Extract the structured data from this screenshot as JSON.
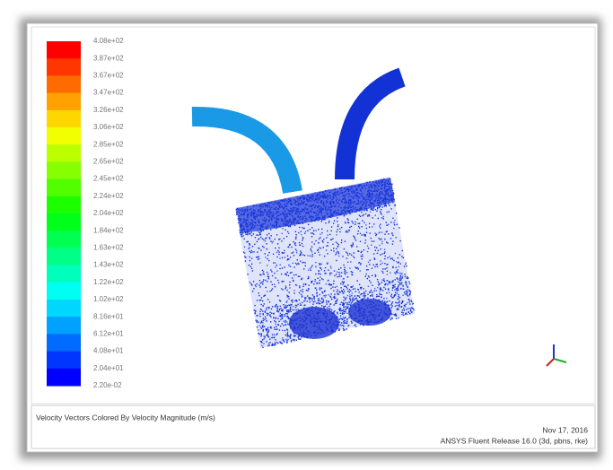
{
  "colorbar": {
    "labels": [
      "4.08e+02",
      "3.87e+02",
      "3.67e+02",
      "3.47e+02",
      "3.26e+02",
      "3.06e+02",
      "2.85e+02",
      "2.65e+02",
      "2.45e+02",
      "2.24e+02",
      "2.04e+02",
      "1.84e+02",
      "1.63e+02",
      "1.43e+02",
      "1.22e+02",
      "1.02e+02",
      "8.16e+01",
      "6.12e+01",
      "4.08e+01",
      "2.04e+01",
      "2.20e-02"
    ]
  },
  "footer": {
    "caption": "Velocity Vectors Colored By Velocity Magnitude (m/s)",
    "date": "Nov 17, 2016",
    "release": "ANSYS Fluent Release 16.0 (3d, pbns, rke)"
  }
}
